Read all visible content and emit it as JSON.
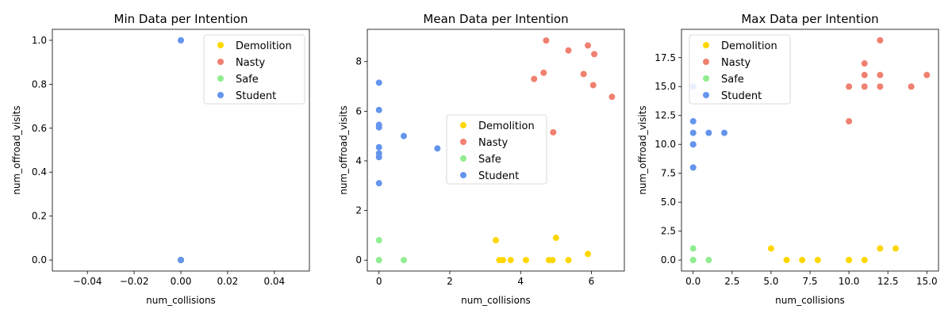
{
  "colors": {
    "Demolition": "#FFD700",
    "Nasty": "#F08070",
    "Safe": "#90EE90",
    "Student": "#6495ED"
  },
  "chart_data": [
    {
      "type": "scatter",
      "title": "Min Data per Intention",
      "xlabel": "num_collisions",
      "ylabel": "num_offroad_visits",
      "xlim": [
        -0.055,
        0.055
      ],
      "ylim": [
        -0.05,
        1.05
      ],
      "xticks": [
        -0.04,
        -0.02,
        0.0,
        0.02,
        0.04
      ],
      "xtick_labels": [
        "−0.04",
        "−0.02",
        "0.00",
        "0.02",
        "0.04"
      ],
      "yticks": [
        0.0,
        0.2,
        0.4,
        0.6,
        0.8,
        1.0
      ],
      "ytick_labels": [
        "0.0",
        "0.2",
        "0.4",
        "0.6",
        "0.8",
        "1.0"
      ],
      "legend_position": "top-right",
      "series": [
        {
          "name": "Demolition",
          "points": [
            [
              0,
              0
            ],
            [
              0,
              0
            ],
            [
              0,
              0
            ]
          ]
        },
        {
          "name": "Nasty",
          "points": [
            [
              0,
              0
            ],
            [
              0,
              0
            ]
          ]
        },
        {
          "name": "Safe",
          "points": [
            [
              0,
              0
            ],
            [
              0,
              0
            ]
          ]
        },
        {
          "name": "Student",
          "points": [
            [
              0,
              0
            ],
            [
              0,
              0
            ],
            [
              0,
              1
            ]
          ]
        }
      ]
    },
    {
      "type": "scatter",
      "title": "Mean Data per Intention",
      "xlabel": "num_collisions",
      "ylabel": "num_offroad_visits",
      "xlim": [
        -0.33,
        6.93
      ],
      "ylim": [
        -0.44,
        9.3
      ],
      "xticks": [
        0,
        2,
        4,
        6
      ],
      "xtick_labels": [
        "0",
        "2",
        "4",
        "6"
      ],
      "yticks": [
        0,
        2,
        4,
        6,
        8
      ],
      "ytick_labels": [
        "0",
        "2",
        "4",
        "6",
        "8"
      ],
      "legend_position": "center",
      "series": [
        {
          "name": "Demolition",
          "points": [
            [
              3.3,
              0.8
            ],
            [
              3.4,
              0.0
            ],
            [
              3.5,
              0.0
            ],
            [
              3.72,
              0.0
            ],
            [
              4.15,
              0.0
            ],
            [
              4.8,
              0.0
            ],
            [
              4.9,
              0.0
            ],
            [
              5.0,
              0.9
            ],
            [
              5.35,
              0.0
            ],
            [
              5.9,
              0.25
            ]
          ]
        },
        {
          "name": "Nasty",
          "points": [
            [
              4.38,
              7.3
            ],
            [
              4.65,
              7.55
            ],
            [
              4.72,
              8.85
            ],
            [
              4.92,
              5.15
            ],
            [
              5.35,
              8.45
            ],
            [
              5.78,
              7.5
            ],
            [
              5.9,
              8.65
            ],
            [
              6.05,
              7.05
            ],
            [
              6.08,
              8.3
            ],
            [
              6.58,
              6.58
            ]
          ]
        },
        {
          "name": "Safe",
          "points": [
            [
              0,
              0.8
            ],
            [
              0,
              0.0
            ],
            [
              0,
              0.0
            ],
            [
              0.7,
              0.0
            ]
          ]
        },
        {
          "name": "Student",
          "points": [
            [
              0,
              7.15
            ],
            [
              0,
              6.05
            ],
            [
              0,
              5.45
            ],
            [
              0,
              5.35
            ],
            [
              0,
              4.55
            ],
            [
              0,
              4.3
            ],
            [
              0,
              4.15
            ],
            [
              0,
              3.1
            ],
            [
              0.7,
              5.0
            ],
            [
              1.65,
              4.5
            ]
          ]
        }
      ]
    },
    {
      "type": "scatter",
      "title": "Max Data per Intention",
      "xlabel": "num_collisions",
      "ylabel": "num_offroad_visits",
      "xlim": [
        -0.75,
        15.75
      ],
      "ylim": [
        -0.95,
        19.95
      ],
      "xticks": [
        0.0,
        2.5,
        5.0,
        7.5,
        10.0,
        12.5,
        15.0
      ],
      "xtick_labels": [
        "0.0",
        "2.5",
        "5.0",
        "7.5",
        "10.0",
        "12.5",
        "15.0"
      ],
      "yticks": [
        0.0,
        2.5,
        5.0,
        7.5,
        10.0,
        12.5,
        15.0,
        17.5
      ],
      "ytick_labels": [
        "0.0",
        "2.5",
        "5.0",
        "7.5",
        "10.0",
        "12.5",
        "15.0",
        "17.5"
      ],
      "legend_position": "top-left",
      "series": [
        {
          "name": "Demolition",
          "points": [
            [
              5,
              1
            ],
            [
              6,
              0
            ],
            [
              7,
              0
            ],
            [
              8,
              0
            ],
            [
              10,
              0
            ],
            [
              10,
              0
            ],
            [
              11,
              0
            ],
            [
              12,
              1
            ],
            [
              13,
              1
            ]
          ]
        },
        {
          "name": "Nasty",
          "points": [
            [
              10,
              12
            ],
            [
              10,
              15
            ],
            [
              11,
              15
            ],
            [
              11,
              16
            ],
            [
              11,
              17
            ],
            [
              12,
              15
            ],
            [
              12,
              16
            ],
            [
              12,
              19
            ],
            [
              14,
              15
            ],
            [
              15,
              16
            ]
          ]
        },
        {
          "name": "Safe",
          "points": [
            [
              0,
              1
            ],
            [
              0,
              0
            ],
            [
              0,
              0
            ],
            [
              1,
              0
            ]
          ]
        },
        {
          "name": "Student",
          "points": [
            [
              0,
              15
            ],
            [
              0,
              12
            ],
            [
              0,
              11
            ],
            [
              0,
              10
            ],
            [
              0,
              10
            ],
            [
              0,
              8
            ],
            [
              1,
              11
            ],
            [
              2,
              11
            ]
          ]
        }
      ]
    }
  ]
}
